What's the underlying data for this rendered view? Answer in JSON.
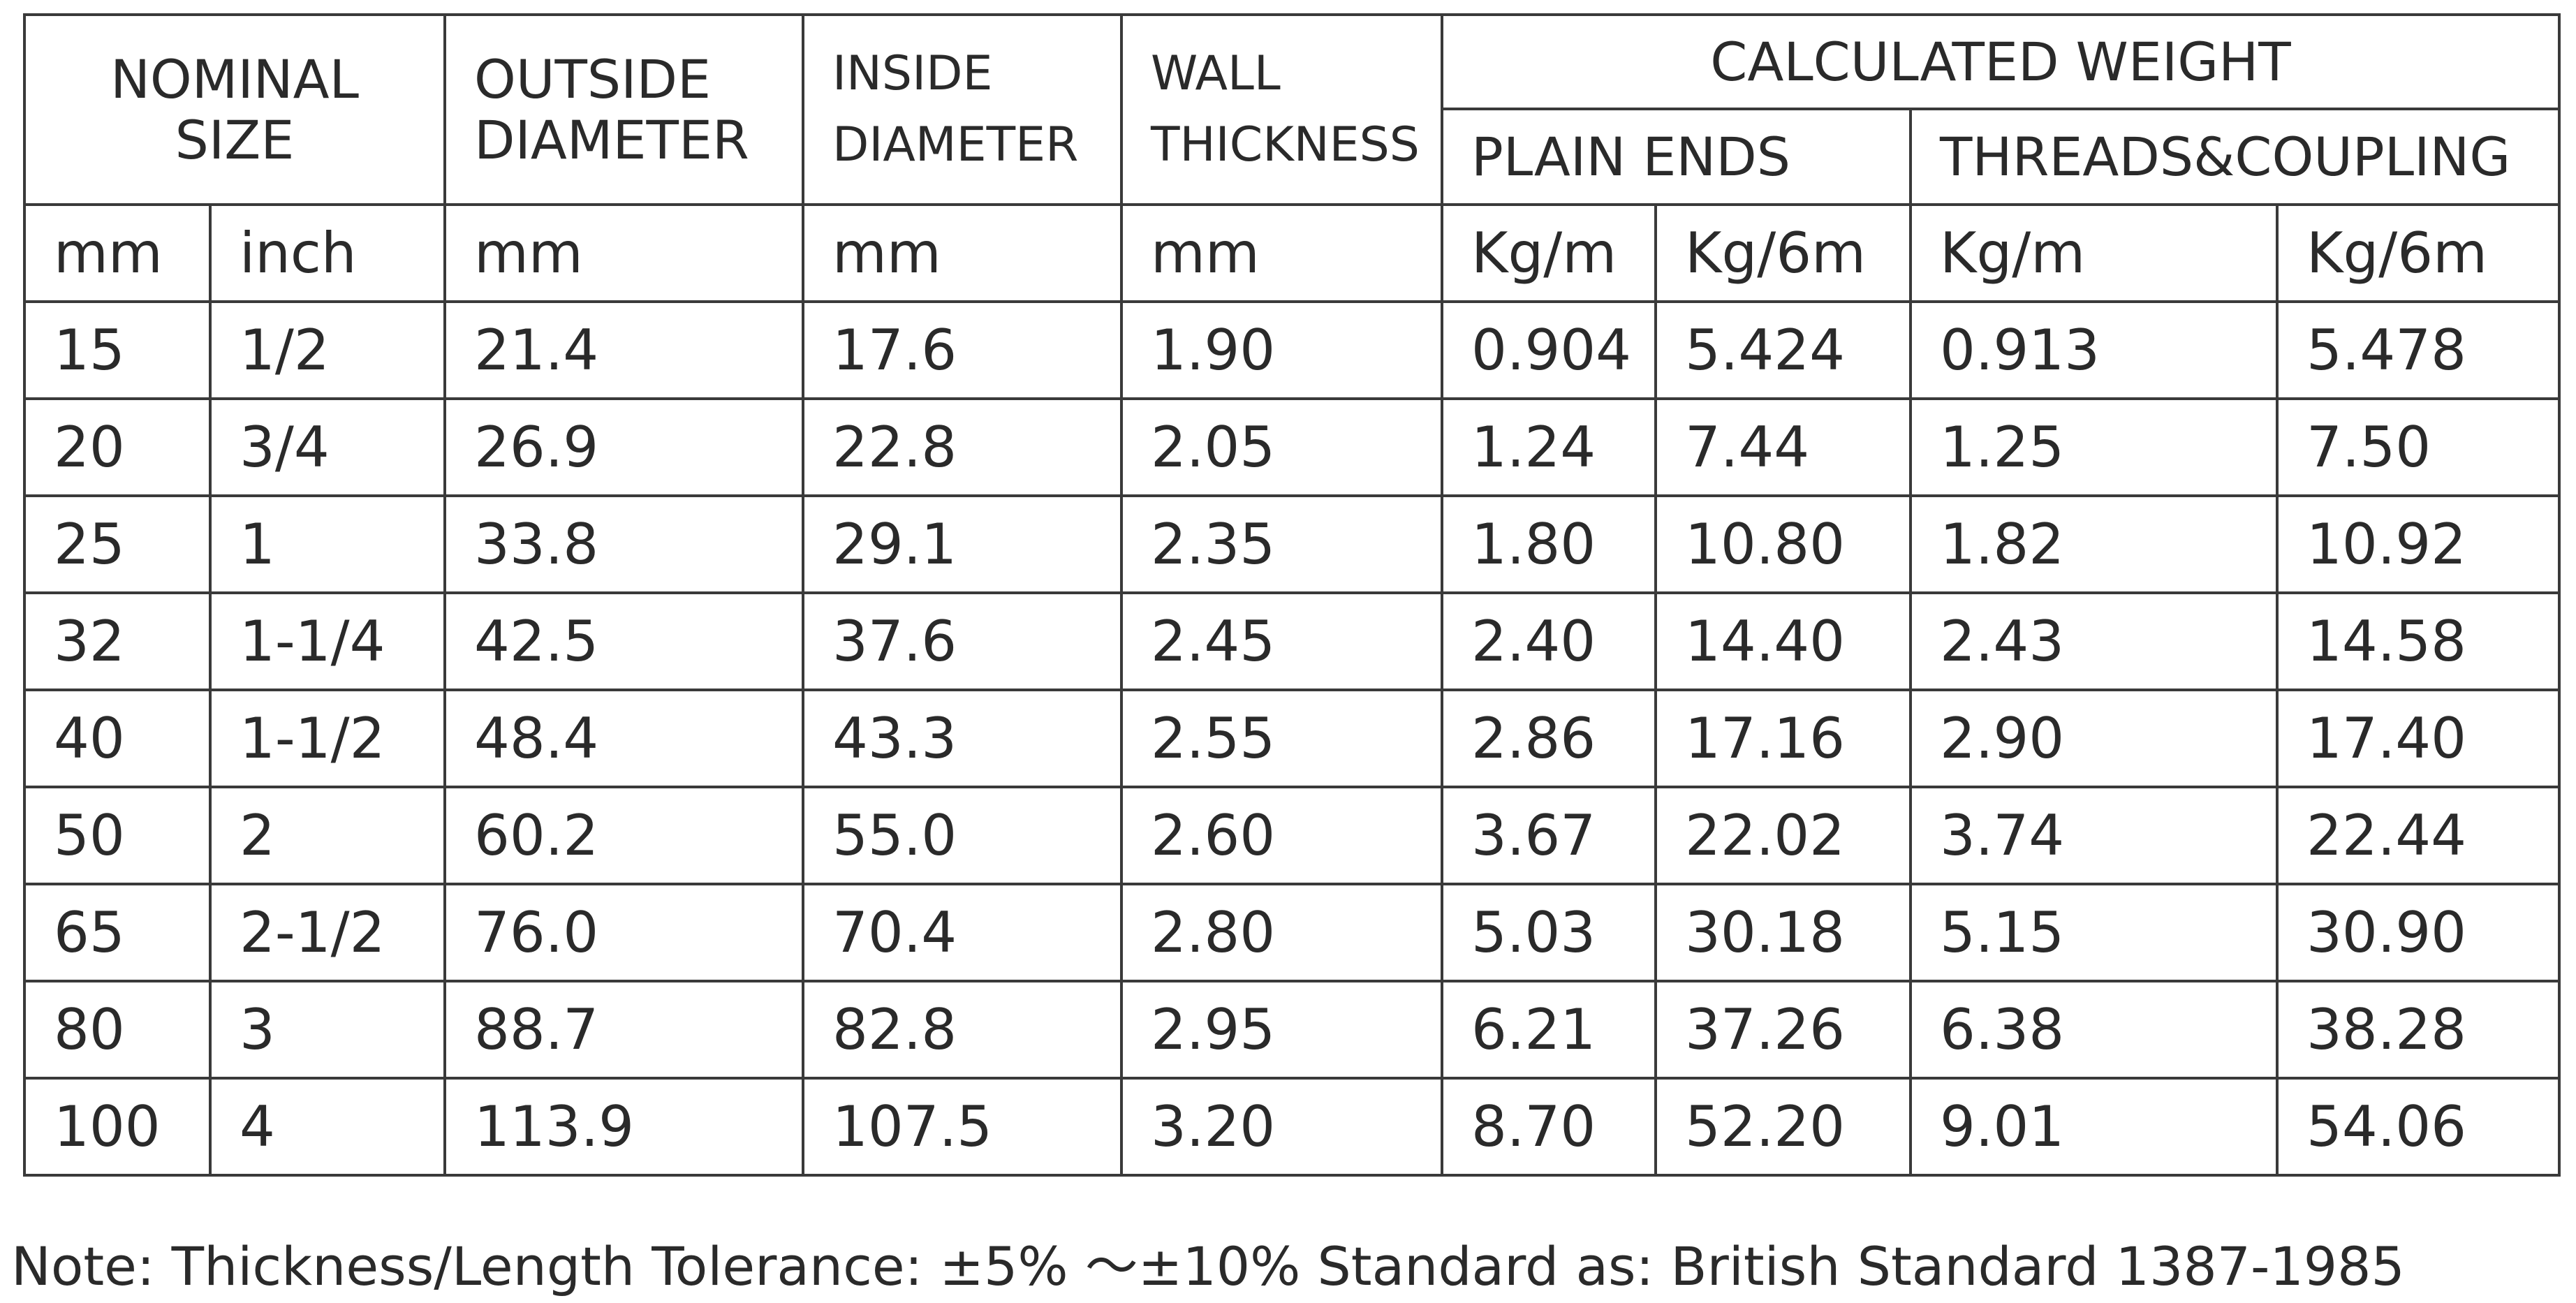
{
  "table": {
    "header": {
      "nominal_size": [
        "NOMINAL",
        "SIZE"
      ],
      "outside_diameter": [
        "OUTSIDE",
        "DIAMETER"
      ],
      "inside_diameter": [
        "INSIDE",
        "DIAMETER"
      ],
      "wall_thickness": [
        "WALL",
        "THICKNESS"
      ],
      "calculated_weight": "CALCULATED WEIGHT",
      "plain_ends": "PLAIN ENDS",
      "threads_coupling": "THREADS&COUPLING"
    },
    "units": [
      "mm",
      "inch",
      "mm",
      "mm",
      "mm",
      "Kg/m",
      "Kg/6m",
      "Kg/m",
      "Kg/6m"
    ],
    "rows": [
      [
        "15",
        "1/2",
        "21.4",
        "17.6",
        "1.90",
        "0.904",
        "5.424",
        "0.913",
        "5.478"
      ],
      [
        "20",
        "3/4",
        "26.9",
        "22.8",
        "2.05",
        "1.24",
        "7.44",
        "1.25",
        "7.50"
      ],
      [
        "25",
        "1",
        "33.8",
        "29.1",
        "2.35",
        "1.80",
        "10.80",
        "1.82",
        "10.92"
      ],
      [
        "32",
        "1-1/4",
        "42.5",
        "37.6",
        "2.45",
        "2.40",
        "14.40",
        "2.43",
        "14.58"
      ],
      [
        "40",
        "1-1/2",
        "48.4",
        "43.3",
        "2.55",
        "2.86",
        "17.16",
        "2.90",
        "17.40"
      ],
      [
        "50",
        "2",
        "60.2",
        "55.0",
        "2.60",
        "3.67",
        "22.02",
        "3.74",
        "22.44"
      ],
      [
        "65",
        "2-1/2",
        "76.0",
        "70.4",
        "2.80",
        "5.03",
        "30.18",
        "5.15",
        "30.90"
      ],
      [
        "80",
        "3",
        "88.7",
        "82.8",
        "2.95",
        "6.21",
        "37.26",
        "6.38",
        "38.28"
      ],
      [
        "100",
        "4",
        "113.9",
        "107.5",
        "3.20",
        "8.70",
        "52.20",
        "9.01",
        "54.06"
      ]
    ]
  },
  "note": "Note: Thickness/Length Tolerance:  ±5%  ～±10% Standard as: British Standard 1387-1985"
}
